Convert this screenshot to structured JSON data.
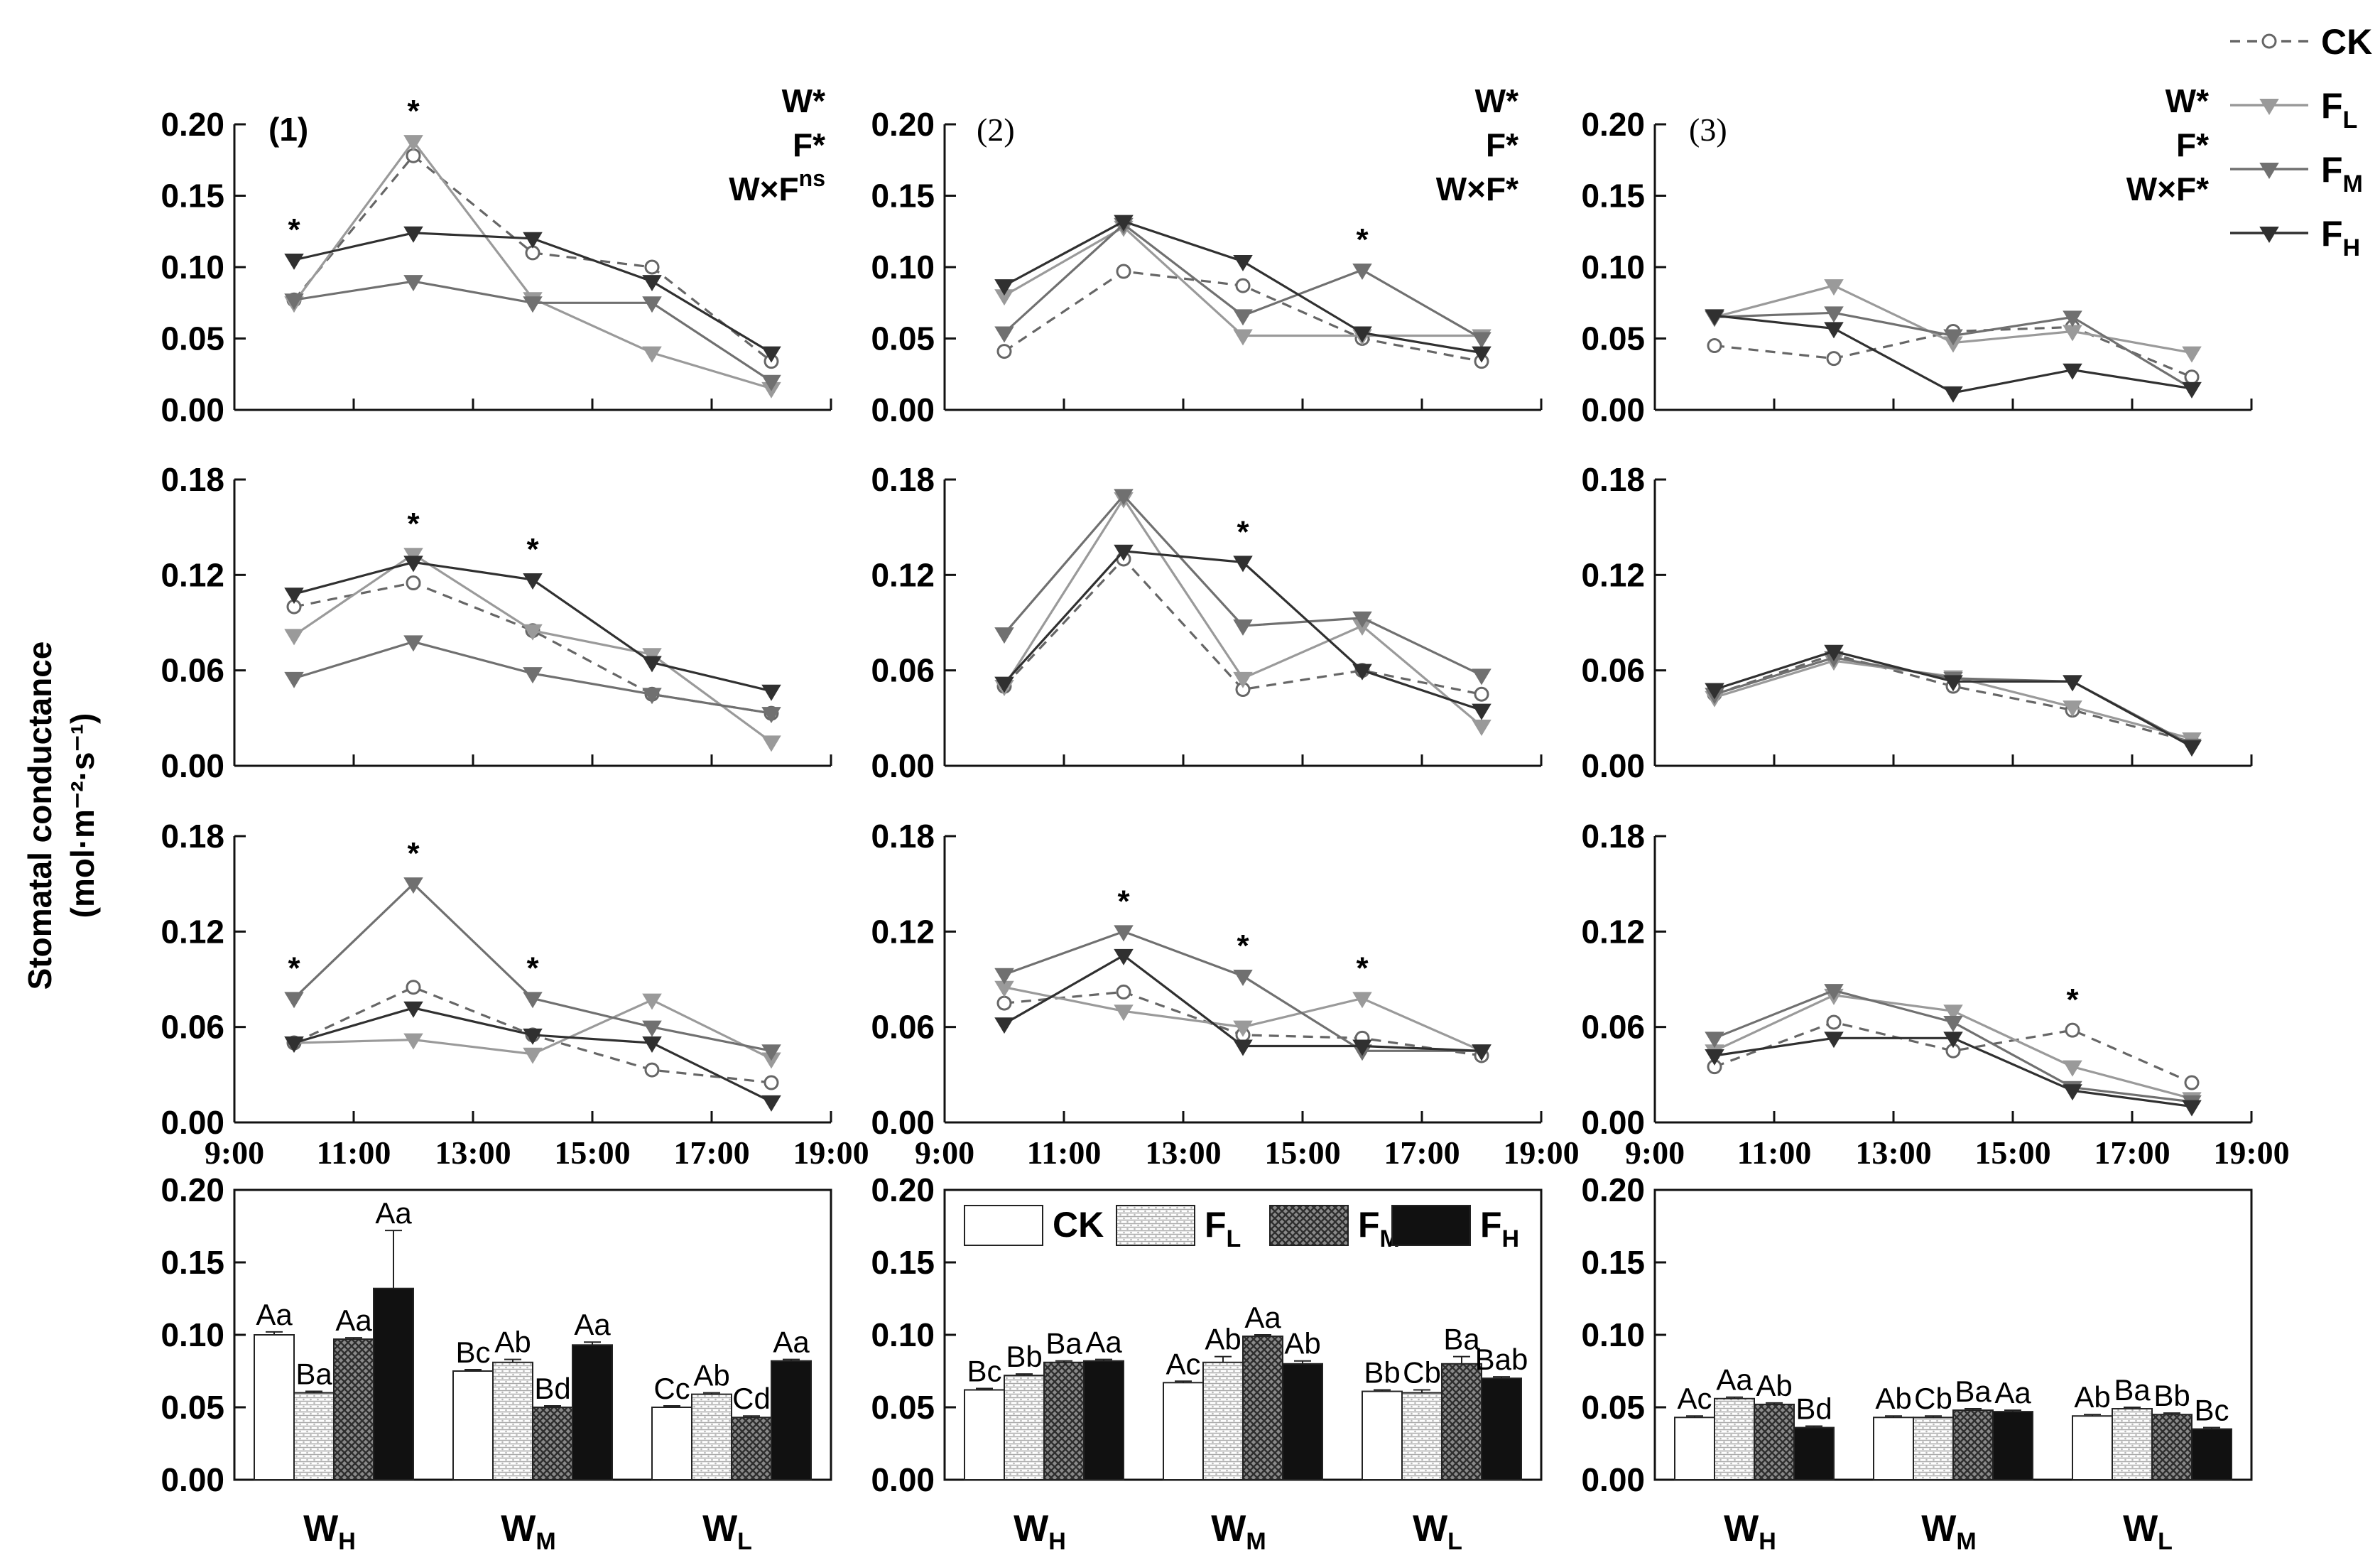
{
  "figure": {
    "ylabel": "Stomatal conductance",
    "ylabel_unit": "(mol·m⁻²·s⁻¹)",
    "panel_labels": [
      "(1)",
      "(2)",
      "(3)"
    ],
    "significance": [
      [
        "W*",
        "F*",
        "W×F",
        "ns"
      ],
      [
        "W*",
        "F*",
        "W×F*",
        ""
      ],
      [
        "W*",
        "F*",
        "W×F*",
        ""
      ]
    ],
    "top_legend": [
      {
        "name": "CK",
        "sub": "",
        "color": "#666666",
        "dashed": true,
        "marker": "open-circle"
      },
      {
        "name": "F",
        "sub": "L",
        "color": "#9a9a9a",
        "dashed": false,
        "marker": "down-triangle"
      },
      {
        "name": "F",
        "sub": "M",
        "color": "#707070",
        "dashed": false,
        "marker": "down-triangle"
      },
      {
        "name": "F",
        "sub": "H",
        "color": "#303030",
        "dashed": false,
        "marker": "down-triangle"
      }
    ],
    "bar_legend": [
      {
        "name": "CK",
        "sub": "",
        "fill": "white"
      },
      {
        "name": "F",
        "sub": "L",
        "fill": "dots"
      },
      {
        "name": "F",
        "sub": "M",
        "fill": "cross"
      },
      {
        "name": "F",
        "sub": "H",
        "fill": "black"
      }
    ],
    "colors": {
      "CK": "#666666",
      "FL": "#9a9a9a",
      "FM": "#707070",
      "FH": "#303030"
    }
  },
  "chart_data": [
    {
      "type": "line",
      "row": 0,
      "col": 0,
      "ylim": [
        0,
        0.2
      ],
      "yticks": [
        "0.00",
        "0.05",
        "0.10",
        "0.15",
        "0.20"
      ],
      "x": [
        10,
        12,
        14,
        16,
        18
      ],
      "series": [
        {
          "name": "CK",
          "values": [
            0.077,
            0.178,
            0.11,
            0.1,
            0.034
          ]
        },
        {
          "name": "FL",
          "values": [
            0.075,
            0.188,
            0.078,
            0.04,
            0.015
          ]
        },
        {
          "name": "FM",
          "values": [
            0.077,
            0.09,
            0.075,
            0.075,
            0.02
          ]
        },
        {
          "name": "FH",
          "values": [
            0.105,
            0.124,
            0.12,
            0.09,
            0.04
          ]
        }
      ],
      "stars": [
        10,
        12
      ]
    },
    {
      "type": "line",
      "row": 0,
      "col": 1,
      "ylim": [
        0,
        0.2
      ],
      "yticks": [
        "0.00",
        "0.05",
        "0.10",
        "0.15",
        "0.20"
      ],
      "x": [
        10,
        12,
        14,
        16,
        18
      ],
      "series": [
        {
          "name": "CK",
          "values": [
            0.041,
            0.097,
            0.087,
            0.05,
            0.034
          ]
        },
        {
          "name": "FL",
          "values": [
            0.08,
            0.128,
            0.052,
            0.052,
            0.052
          ]
        },
        {
          "name": "FM",
          "values": [
            0.054,
            0.13,
            0.066,
            0.098,
            0.05
          ]
        },
        {
          "name": "FH",
          "values": [
            0.087,
            0.132,
            0.104,
            0.054,
            0.04
          ]
        }
      ],
      "stars": [
        16
      ]
    },
    {
      "type": "line",
      "row": 0,
      "col": 2,
      "ylim": [
        0,
        0.2
      ],
      "yticks": [
        "0.00",
        "0.05",
        "0.10",
        "0.15",
        "0.20"
      ],
      "x": [
        10,
        12,
        14,
        16,
        18
      ],
      "series": [
        {
          "name": "CK",
          "values": [
            0.045,
            0.036,
            0.055,
            0.058,
            0.023
          ]
        },
        {
          "name": "FL",
          "values": [
            0.065,
            0.087,
            0.047,
            0.055,
            0.04
          ]
        },
        {
          "name": "FM",
          "values": [
            0.065,
            0.068,
            0.052,
            0.065,
            0.015
          ]
        },
        {
          "name": "FH",
          "values": [
            0.066,
            0.057,
            0.012,
            0.028,
            0.015
          ]
        }
      ],
      "stars": []
    },
    {
      "type": "line",
      "row": 1,
      "col": 0,
      "ylim": [
        0,
        0.18
      ],
      "yticks": [
        "0.00",
        "0.06",
        "0.12",
        "0.18"
      ],
      "x": [
        10,
        12,
        14,
        16,
        18
      ],
      "series": [
        {
          "name": "CK",
          "values": [
            0.1,
            0.115,
            0.085,
            0.045,
            0.033
          ]
        },
        {
          "name": "FL",
          "values": [
            0.082,
            0.133,
            0.085,
            0.07,
            0.015
          ]
        },
        {
          "name": "FM",
          "values": [
            0.055,
            0.078,
            0.058,
            0.045,
            0.033
          ]
        },
        {
          "name": "FH",
          "values": [
            0.108,
            0.128,
            0.117,
            0.065,
            0.047
          ]
        }
      ],
      "stars": [
        12,
        14
      ]
    },
    {
      "type": "line",
      "row": 1,
      "col": 1,
      "ylim": [
        0,
        0.18
      ],
      "yticks": [
        "0.00",
        "0.06",
        "0.12",
        "0.18"
      ],
      "x": [
        10,
        12,
        14,
        16,
        18
      ],
      "series": [
        {
          "name": "CK",
          "values": [
            0.05,
            0.13,
            0.048,
            0.06,
            0.045
          ]
        },
        {
          "name": "FL",
          "values": [
            0.05,
            0.168,
            0.055,
            0.088,
            0.025
          ]
        },
        {
          "name": "FM",
          "values": [
            0.083,
            0.17,
            0.088,
            0.093,
            0.057
          ]
        },
        {
          "name": "FH",
          "values": [
            0.052,
            0.135,
            0.128,
            0.06,
            0.035
          ]
        }
      ],
      "stars": [
        14
      ]
    },
    {
      "type": "line",
      "row": 1,
      "col": 2,
      "ylim": [
        0,
        0.18
      ],
      "yticks": [
        "0.00",
        "0.06",
        "0.12",
        "0.18"
      ],
      "x": [
        10,
        12,
        14,
        16,
        18
      ],
      "series": [
        {
          "name": "CK",
          "values": [
            0.045,
            0.07,
            0.05,
            0.035,
            0.015
          ]
        },
        {
          "name": "FL",
          "values": [
            0.043,
            0.066,
            0.056,
            0.037,
            0.017
          ]
        },
        {
          "name": "FM",
          "values": [
            0.045,
            0.068,
            0.055,
            0.053,
            0.013
          ]
        },
        {
          "name": "FH",
          "values": [
            0.048,
            0.072,
            0.053,
            0.053,
            0.012
          ]
        }
      ],
      "stars": []
    },
    {
      "type": "line",
      "row": 2,
      "col": 0,
      "ylim": [
        0,
        0.18
      ],
      "yticks": [
        "0.00",
        "0.06",
        "0.12",
        "0.18"
      ],
      "x": [
        10,
        12,
        14,
        16,
        18
      ],
      "series": [
        {
          "name": "CK",
          "values": [
            0.05,
            0.085,
            0.055,
            0.033,
            0.025
          ]
        },
        {
          "name": "FL",
          "values": [
            0.05,
            0.052,
            0.043,
            0.077,
            0.04
          ]
        },
        {
          "name": "FM",
          "values": [
            0.078,
            0.15,
            0.078,
            0.06,
            0.045
          ]
        },
        {
          "name": "FH",
          "values": [
            0.05,
            0.072,
            0.055,
            0.05,
            0.013
          ]
        }
      ],
      "stars": [
        10,
        12,
        14
      ]
    },
    {
      "type": "line",
      "row": 2,
      "col": 1,
      "ylim": [
        0,
        0.18
      ],
      "yticks": [
        "0.00",
        "0.06",
        "0.12",
        "0.18"
      ],
      "x": [
        10,
        12,
        14,
        16,
        18
      ],
      "series": [
        {
          "name": "CK",
          "values": [
            0.075,
            0.082,
            0.055,
            0.053,
            0.042
          ]
        },
        {
          "name": "FL",
          "values": [
            0.085,
            0.07,
            0.06,
            0.078,
            0.045
          ]
        },
        {
          "name": "FM",
          "values": [
            0.093,
            0.12,
            0.092,
            0.045,
            0.045
          ]
        },
        {
          "name": "FH",
          "values": [
            0.062,
            0.105,
            0.048,
            0.048,
            0.045
          ]
        }
      ],
      "stars": [
        12,
        14,
        16
      ]
    },
    {
      "type": "line",
      "row": 2,
      "col": 2,
      "ylim": [
        0,
        0.18
      ],
      "yticks": [
        "0.00",
        "0.06",
        "0.12",
        "0.18"
      ],
      "x": [
        10,
        12,
        14,
        16,
        18
      ],
      "xticks": [
        "9:00",
        "11:00",
        "13:00",
        "15:00",
        "17:00",
        "19:00"
      ],
      "series": [
        {
          "name": "CK",
          "values": [
            0.035,
            0.063,
            0.045,
            0.058,
            0.025
          ]
        },
        {
          "name": "FL",
          "values": [
            0.045,
            0.08,
            0.07,
            0.035,
            0.015
          ]
        },
        {
          "name": "FM",
          "values": [
            0.053,
            0.083,
            0.063,
            0.022,
            0.013
          ]
        },
        {
          "name": "FH",
          "values": [
            0.042,
            0.053,
            0.053,
            0.02,
            0.01
          ]
        }
      ],
      "stars": [
        16
      ]
    },
    {
      "type": "bar",
      "row": 3,
      "col": 0,
      "ylim": [
        0,
        0.2
      ],
      "yticks": [
        "0.00",
        "0.05",
        "0.10",
        "0.15",
        "0.20"
      ],
      "categories": [
        {
          "main": "W",
          "sub": "H"
        },
        {
          "main": "W",
          "sub": "M"
        },
        {
          "main": "W",
          "sub": "L"
        }
      ],
      "series": [
        {
          "name": "CK",
          "values": [
            0.1,
            0.075,
            0.05
          ]
        },
        {
          "name": "FL",
          "values": [
            0.06,
            0.081,
            0.059
          ]
        },
        {
          "name": "FM",
          "values": [
            0.097,
            0.05,
            0.043
          ]
        },
        {
          "name": "FH",
          "values": [
            0.132,
            0.093,
            0.082
          ]
        }
      ],
      "errors": [
        [
          0.002,
          0.001,
          0.001
        ],
        [
          0.001,
          0.002,
          0.001
        ],
        [
          0.001,
          0.001,
          0.001
        ],
        [
          0.04,
          0.002,
          0.001
        ]
      ],
      "labels": [
        [
          "Aa",
          "Bc",
          "Cc"
        ],
        [
          "Ba",
          "Ab",
          "Ab"
        ],
        [
          "Aa",
          "Bd",
          "Cd"
        ],
        [
          "Aa",
          "Aa",
          "Aa"
        ]
      ]
    },
    {
      "type": "bar",
      "row": 3,
      "col": 1,
      "ylim": [
        0,
        0.2
      ],
      "yticks": [
        "0.00",
        "0.05",
        "0.10",
        "0.15",
        "0.20"
      ],
      "categories": [
        {
          "main": "W",
          "sub": "H"
        },
        {
          "main": "W",
          "sub": "M"
        },
        {
          "main": "W",
          "sub": "L"
        }
      ],
      "series": [
        {
          "name": "CK",
          "values": [
            0.062,
            0.067,
            0.061
          ]
        },
        {
          "name": "FL",
          "values": [
            0.072,
            0.081,
            0.06
          ]
        },
        {
          "name": "FM",
          "values": [
            0.081,
            0.099,
            0.08
          ]
        },
        {
          "name": "FH",
          "values": [
            0.082,
            0.08,
            0.07
          ]
        }
      ],
      "errors": [
        [
          0.001,
          0.001,
          0.001
        ],
        [
          0.001,
          0.004,
          0.002
        ],
        [
          0.001,
          0.001,
          0.005
        ],
        [
          0.001,
          0.002,
          0.001
        ]
      ],
      "labels": [
        [
          "Bc",
          "Ac",
          "Bb"
        ],
        [
          "Bb",
          "Ab",
          "Cb"
        ],
        [
          "Ba",
          "Aa",
          "Ba"
        ],
        [
          "Aa",
          "Ab",
          "Bab"
        ]
      ]
    },
    {
      "type": "bar",
      "row": 3,
      "col": 2,
      "ylim": [
        0,
        0.2
      ],
      "yticks": [
        "0.00",
        "0.05",
        "0.10",
        "0.15",
        "0.20"
      ],
      "categories": [
        {
          "main": "W",
          "sub": "H"
        },
        {
          "main": "W",
          "sub": "M"
        },
        {
          "main": "W",
          "sub": "L"
        }
      ],
      "series": [
        {
          "name": "CK",
          "values": [
            0.043,
            0.043,
            0.044
          ]
        },
        {
          "name": "FL",
          "values": [
            0.056,
            0.043,
            0.049
          ]
        },
        {
          "name": "FM",
          "values": [
            0.052,
            0.048,
            0.045
          ]
        },
        {
          "name": "FH",
          "values": [
            0.036,
            0.047,
            0.035
          ]
        }
      ],
      "errors": [
        [
          0.001,
          0.001,
          0.001
        ],
        [
          0.001,
          0.001,
          0.001
        ],
        [
          0.001,
          0.001,
          0.001
        ],
        [
          0.001,
          0.001,
          0.001
        ]
      ],
      "labels": [
        [
          "Ac",
          "Ab",
          "Ab"
        ],
        [
          "Aa",
          "Cb",
          "Ba"
        ],
        [
          "Ab",
          "Ba",
          "Bb"
        ],
        [
          "Bd",
          "Aa",
          "Bc"
        ]
      ]
    }
  ]
}
